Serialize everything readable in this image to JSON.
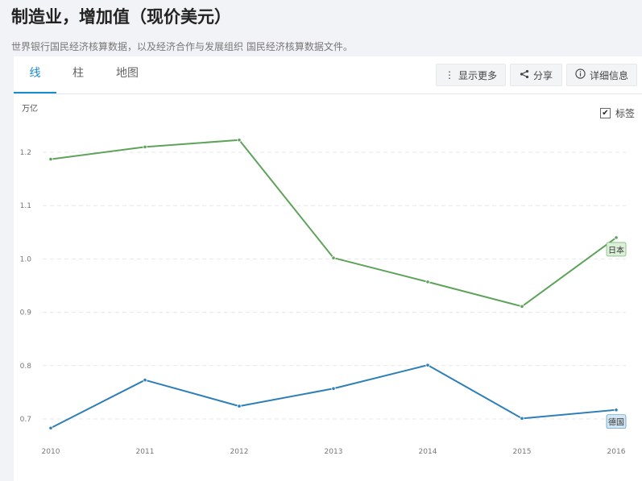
{
  "page": {
    "title": "制造业，增加值（现价美元）",
    "subtitle": "世界银行国民经济核算数据，以及经济合作与发展组织 国民经济核算数据文件。"
  },
  "tabs": [
    {
      "label": "线",
      "active": true
    },
    {
      "label": "柱",
      "active": false
    },
    {
      "label": "地图",
      "active": false
    }
  ],
  "toolbar": {
    "more_label": "显示更多",
    "share_label": "分享",
    "details_label": "详细信息"
  },
  "labels_toggle": {
    "label": "标签",
    "checked": true
  },
  "chart_data": {
    "type": "line",
    "unit": "万亿",
    "x": [
      2010,
      2011,
      2012,
      2013,
      2014,
      2015,
      2016
    ],
    "yticks": [
      "0.7",
      "0.8",
      "0.9",
      "1.0",
      "1.1",
      "1.2"
    ],
    "ylim": [
      0.68,
      1.29
    ],
    "grid": true,
    "series": [
      {
        "name": "日本",
        "color": "#5ea35a",
        "values": [
          1.187,
          1.21,
          1.223,
          1.002,
          0.957,
          0.911,
          1.04
        ]
      },
      {
        "name": "德国",
        "color": "#2e7fb8",
        "values": [
          0.683,
          0.773,
          0.724,
          0.757,
          0.801,
          0.701,
          0.717
        ]
      }
    ]
  }
}
